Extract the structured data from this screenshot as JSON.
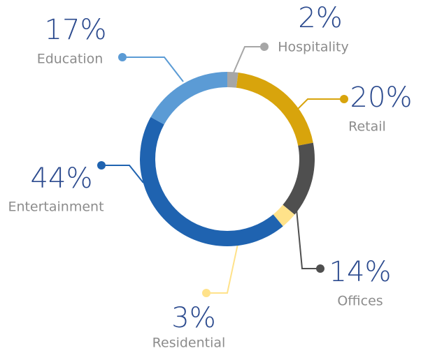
{
  "chart_data": {
    "type": "donut",
    "categories": [
      "Hospitality",
      "Retail",
      "Offices",
      "Residential",
      "Entertainment",
      "Education"
    ],
    "values": [
      2,
      20,
      14,
      3,
      44,
      17
    ],
    "value_labels": [
      "2%",
      "20%",
      "14%",
      "3%",
      "44%",
      "17%"
    ],
    "colors": [
      "#a6a6a6",
      "#d8a40c",
      "#4f4f4f",
      "#ffe28a",
      "#1f63b0",
      "#5b9bd5"
    ]
  }
}
